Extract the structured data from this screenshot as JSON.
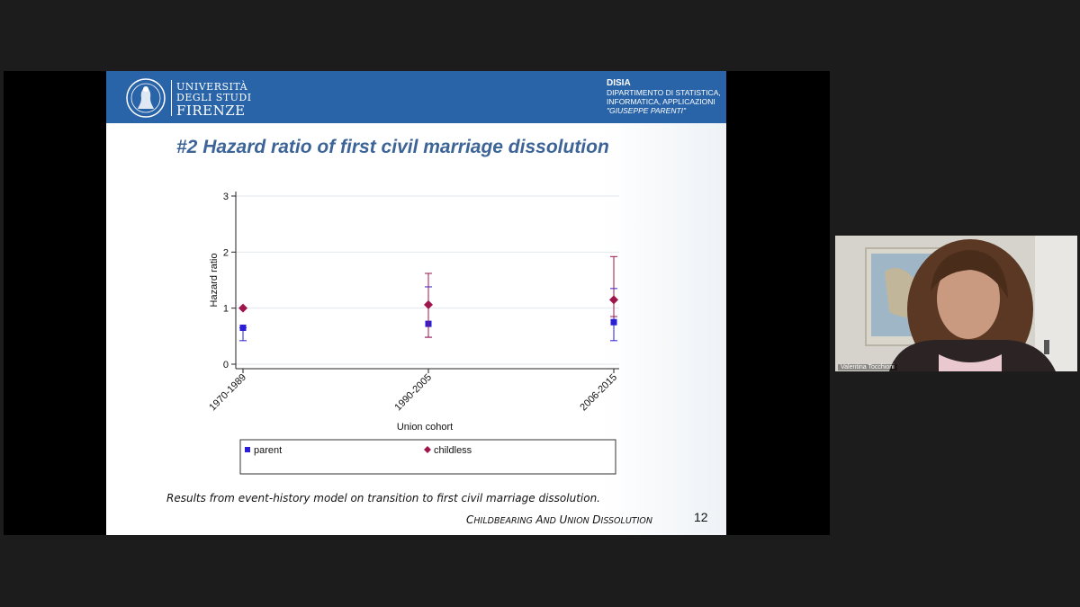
{
  "slide": {
    "university": {
      "line1": "UNIVERSITÀ",
      "line2": "DEGLI STUDI",
      "line3": "FIRENZE"
    },
    "department": {
      "name": "DISIA",
      "sub1": "DIPARTIMENTO DI STATISTICA,",
      "sub2": "INFORMATICA, APPLICAZIONI",
      "sub3": "\"GIUSEPPE PARENTI\""
    },
    "title": "#2 Hazard ratio of first civil marriage dissolution",
    "caption": "Results from event-history model on transition to first civil marriage dissolution.",
    "footer_title": "CHILDBEARING AND UNION DISSOLUTION",
    "page_number": "12"
  },
  "chart_data": {
    "type": "scatter",
    "title": "",
    "xlabel": "Union cohort",
    "ylabel": "Hazard ratio",
    "ylim": [
      0,
      3
    ],
    "yticks": [
      "0",
      "1",
      "2",
      "3"
    ],
    "categories": [
      "1970-1989",
      "1990-2005",
      "2006-2015"
    ],
    "series": [
      {
        "name": "parent",
        "color": "#2a1fd6",
        "marker": "square",
        "values": [
          0.65,
          0.72,
          0.75
        ],
        "ci_low": [
          0.42,
          0.48,
          0.42
        ],
        "ci_high": [
          0.65,
          1.38,
          1.35
        ]
      },
      {
        "name": "childless",
        "color": "#a0154b",
        "marker": "diamond",
        "values": [
          1.0,
          1.06,
          1.15
        ],
        "ci_low": [
          1.0,
          0.48,
          0.85
        ],
        "ci_high": [
          1.0,
          1.62,
          1.92
        ]
      }
    ],
    "legend": {
      "placement": "bottom",
      "entries": [
        "parent",
        "childless"
      ]
    },
    "grid": true
  },
  "video": {
    "participant_name": "Valentina Tocchioni"
  },
  "colors": {
    "header_blue": "#2a64a8",
    "title_blue": "#3d6497"
  }
}
